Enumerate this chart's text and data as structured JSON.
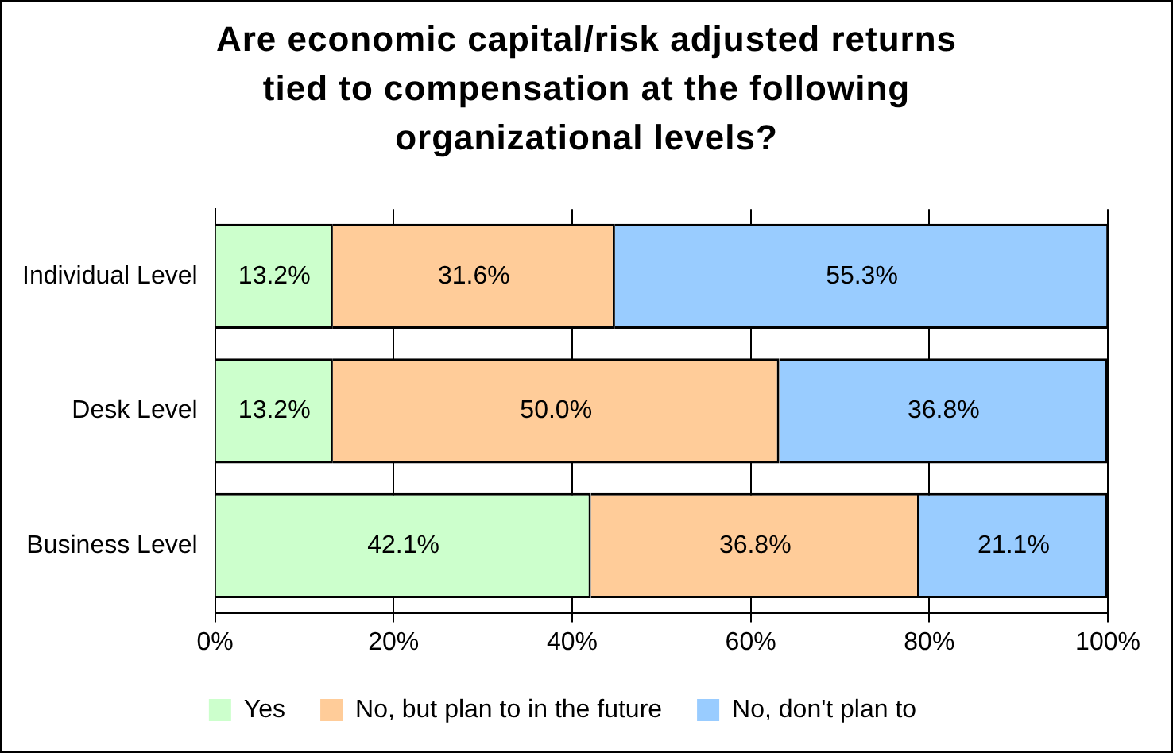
{
  "chart_data": {
    "type": "bar",
    "orientation": "horizontal",
    "stacked": true,
    "title": "Are economic capital/risk adjusted returns tied to compensation at the following organizational levels?",
    "categories": [
      "Individual Level",
      "Desk Level",
      "Business Level"
    ],
    "series": [
      {
        "name": "Yes",
        "color": "#ccffcc",
        "values": [
          13.2,
          13.2,
          42.1
        ],
        "value_labels": [
          "13.2%",
          "13.2%",
          "42.1%"
        ]
      },
      {
        "name": "No, but plan to in the future",
        "color": "#ffcc99",
        "values": [
          31.6,
          50.0,
          36.8
        ],
        "value_labels": [
          "31.6%",
          "50.0%",
          "36.8%"
        ]
      },
      {
        "name": "No, don't plan to",
        "color": "#99ccff",
        "values": [
          55.3,
          36.8,
          21.1
        ],
        "value_labels": [
          "55.3%",
          "36.8%",
          "21.1%"
        ]
      }
    ],
    "xlim": [
      0,
      100
    ],
    "xticks": [
      {
        "value": 0,
        "label": "0%"
      },
      {
        "value": 20,
        "label": "20%"
      },
      {
        "value": 40,
        "label": "40%"
      },
      {
        "value": 60,
        "label": "60%"
      },
      {
        "value": 80,
        "label": "80%"
      },
      {
        "value": 100,
        "label": "100%"
      }
    ],
    "grid": "x",
    "legend": "bottom"
  }
}
